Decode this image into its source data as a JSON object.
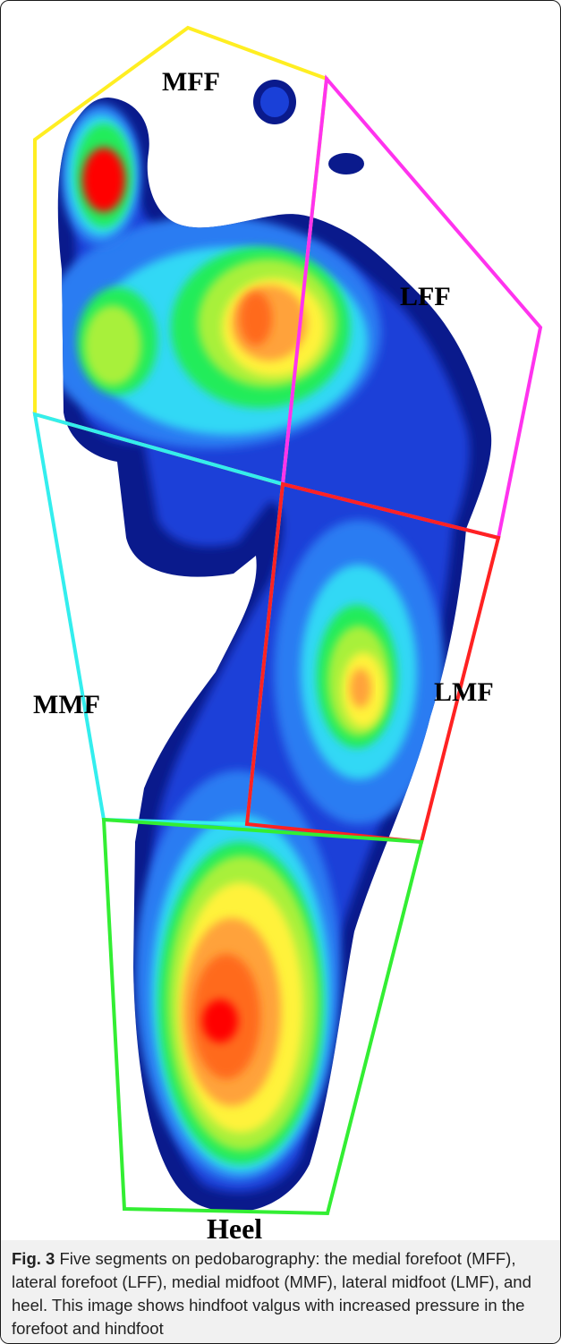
{
  "figure": {
    "segment_labels": {
      "mff": "MFF",
      "lff": "LFF",
      "mmf": "MMF",
      "lmf": "LMF",
      "heel": "Heel"
    },
    "segment_colors": {
      "mff": "#ffee22",
      "lff": "#ff33ee",
      "mmf": "#33eeee",
      "lmf": "#ff2222",
      "heel": "#33ee33"
    },
    "pressure_scale_colors": [
      "#0a1a8c",
      "#1a40d8",
      "#2a7cf2",
      "#30d8f5",
      "#22ec5a",
      "#a8f03a",
      "#fff23a",
      "#ffa23a",
      "#ff6a1a",
      "#ff0000"
    ]
  },
  "caption": {
    "fig_number": "Fig. 3",
    "text": " Five segments on pedobarography: the medial forefoot (MFF), lateral forefoot (LFF), medial midfoot (MMF), lateral midfoot (LMF), and heel. This image shows hindfoot valgus with increased pressure in the forefoot and hindfoot"
  }
}
